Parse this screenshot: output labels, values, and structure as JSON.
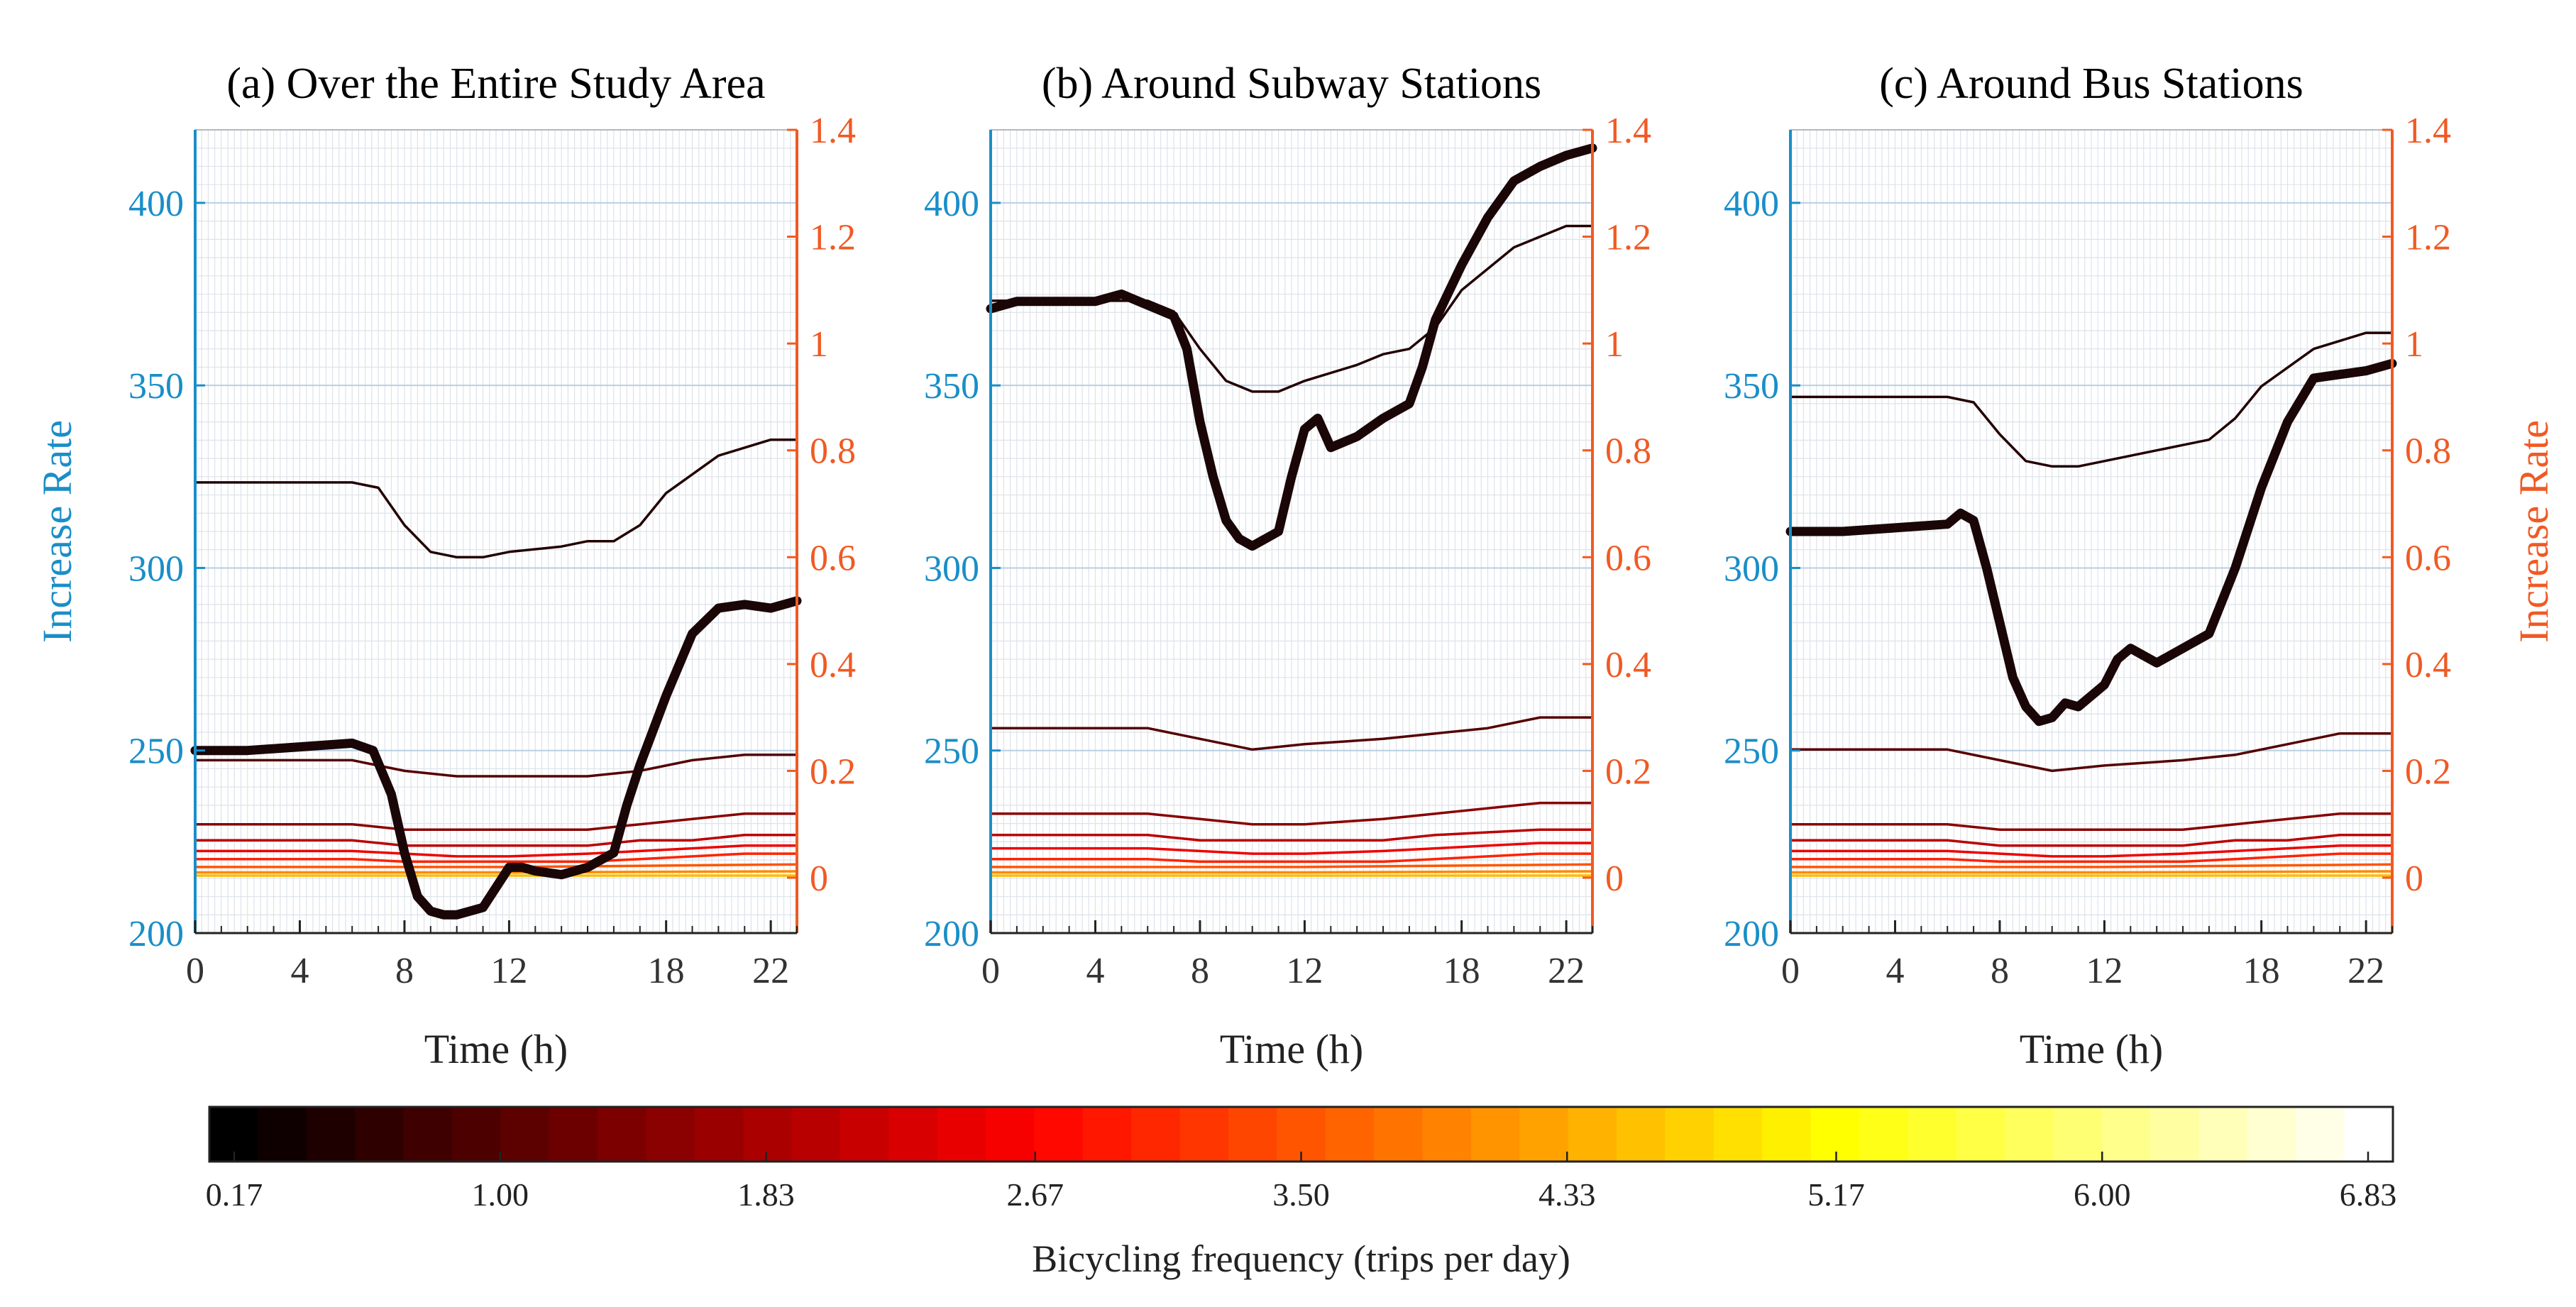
{
  "chart_data": [
    {
      "type": "line",
      "title": "(a) Over the Entire Study Area",
      "xlabel": "Time (h)",
      "ylabel_left": "Increase Rate",
      "ylabel_right": "",
      "xlim": [
        0,
        23
      ],
      "ylim_left": [
        200,
        420
      ],
      "ylim_right": [
        0,
        1.4
      ],
      "xticks": [
        "0",
        "4",
        "8",
        "12",
        "18",
        "22"
      ],
      "yticks_left": [
        "200",
        "250",
        "300",
        "350",
        "400"
      ],
      "yticks_right": [
        "0",
        "0.2",
        "0.4",
        "0.6",
        "0.8",
        "1",
        "1.2",
        "1.4"
      ],
      "grid": true,
      "series": [
        {
          "axis": "left",
          "role": "increase-rate",
          "freq": 0.17,
          "x": [
            0,
            2,
            4,
            6,
            6.8,
            7.5,
            8,
            8.5,
            9,
            9.5,
            10,
            11,
            12,
            12.5,
            13,
            14,
            15,
            16,
            16.5,
            17,
            18,
            19,
            20,
            21,
            22,
            23
          ],
          "y": [
            250,
            250,
            251,
            252,
            250,
            238,
            222,
            210,
            206,
            205,
            205,
            207,
            218,
            218,
            217,
            216,
            218,
            222,
            235,
            246,
            265,
            282,
            289,
            290,
            289,
            291
          ]
        },
        {
          "axis": "right",
          "freq": 0.5,
          "x": [
            0,
            2,
            4,
            6,
            7,
            8,
            9,
            10,
            11,
            12,
            14,
            15,
            16,
            17,
            18,
            20,
            22,
            23
          ],
          "y": [
            0.74,
            0.74,
            0.74,
            0.74,
            0.73,
            0.66,
            0.61,
            0.6,
            0.6,
            0.61,
            0.62,
            0.63,
            0.63,
            0.66,
            0.72,
            0.79,
            0.82,
            0.82
          ]
        },
        {
          "axis": "right",
          "freq": 1.0,
          "x": [
            0,
            6,
            8,
            10,
            12,
            15,
            17,
            19,
            21,
            23
          ],
          "y": [
            0.22,
            0.22,
            0.2,
            0.19,
            0.19,
            0.19,
            0.2,
            0.22,
            0.23,
            0.23
          ]
        },
        {
          "axis": "right",
          "freq": 1.5,
          "x": [
            0,
            6,
            8,
            10,
            12,
            15,
            17,
            19,
            21,
            23
          ],
          "y": [
            0.1,
            0.1,
            0.09,
            0.09,
            0.09,
            0.09,
            0.1,
            0.11,
            0.12,
            0.12
          ]
        },
        {
          "axis": "right",
          "freq": 2.0,
          "x": [
            0,
            6,
            8,
            10,
            12,
            15,
            17,
            19,
            21,
            23
          ],
          "y": [
            0.07,
            0.07,
            0.06,
            0.06,
            0.06,
            0.06,
            0.07,
            0.07,
            0.08,
            0.08
          ]
        },
        {
          "axis": "right",
          "freq": 2.5,
          "x": [
            0,
            6,
            8,
            10,
            12,
            15,
            17,
            19,
            21,
            23
          ],
          "y": [
            0.05,
            0.05,
            0.045,
            0.04,
            0.04,
            0.045,
            0.05,
            0.055,
            0.06,
            0.06
          ]
        },
        {
          "axis": "right",
          "freq": 3.0,
          "x": [
            0,
            6,
            8,
            10,
            12,
            15,
            17,
            19,
            21,
            23
          ],
          "y": [
            0.035,
            0.035,
            0.03,
            0.03,
            0.03,
            0.03,
            0.035,
            0.04,
            0.045,
            0.045
          ]
        },
        {
          "axis": "right",
          "freq": 3.5,
          "x": [
            0,
            12,
            23
          ],
          "y": [
            0.02,
            0.02,
            0.025
          ]
        },
        {
          "axis": "right",
          "freq": 4.0,
          "x": [
            0,
            12,
            23
          ],
          "y": [
            0.01,
            0.01,
            0.012
          ]
        },
        {
          "axis": "right",
          "freq": 4.5,
          "x": [
            0,
            23
          ],
          "y": [
            0.004,
            0.004
          ]
        }
      ]
    },
    {
      "type": "line",
      "title": "(b) Around Subway Stations",
      "xlabel": "Time (h)",
      "ylabel_left": "",
      "ylabel_right": "",
      "xlim": [
        0,
        23
      ],
      "ylim_left": [
        200,
        420
      ],
      "ylim_right": [
        0,
        1.4
      ],
      "xticks": [
        "0",
        "4",
        "8",
        "12",
        "18",
        "22"
      ],
      "yticks_left": [
        "200",
        "250",
        "300",
        "350",
        "400"
      ],
      "yticks_right": [
        "0",
        "0.2",
        "0.4",
        "0.6",
        "0.8",
        "1",
        "1.2",
        "1.4"
      ],
      "grid": true,
      "series": [
        {
          "axis": "left",
          "role": "increase-rate",
          "freq": 0.17,
          "x": [
            0,
            1,
            2,
            4,
            5,
            6,
            7,
            7.5,
            8,
            8.5,
            9,
            9.5,
            10,
            11,
            11.5,
            12,
            12.5,
            13,
            14,
            15,
            16,
            16.5,
            17,
            18,
            19,
            20,
            21,
            22,
            23
          ],
          "y": [
            371,
            373,
            373,
            373,
            375,
            372,
            369,
            360,
            340,
            325,
            313,
            308,
            306,
            310,
            325,
            338,
            341,
            333,
            336,
            341,
            345,
            355,
            368,
            383,
            396,
            406,
            410,
            413,
            415
          ]
        },
        {
          "axis": "right",
          "freq": 0.5,
          "x": [
            0,
            2,
            4,
            6,
            7,
            8,
            9,
            10,
            11,
            12,
            14,
            15,
            16,
            17,
            18,
            20,
            22,
            23
          ],
          "y": [
            1.08,
            1.08,
            1.08,
            1.08,
            1.06,
            0.99,
            0.93,
            0.91,
            0.91,
            0.93,
            0.96,
            0.98,
            0.99,
            1.03,
            1.1,
            1.18,
            1.22,
            1.22
          ]
        },
        {
          "axis": "right",
          "freq": 1.0,
          "x": [
            0,
            6,
            8,
            10,
            12,
            15,
            17,
            19,
            21,
            23
          ],
          "y": [
            0.28,
            0.28,
            0.26,
            0.24,
            0.25,
            0.26,
            0.27,
            0.28,
            0.3,
            0.3
          ]
        },
        {
          "axis": "right",
          "freq": 1.5,
          "x": [
            0,
            6,
            8,
            10,
            12,
            15,
            17,
            19,
            21,
            23
          ],
          "y": [
            0.12,
            0.12,
            0.11,
            0.1,
            0.1,
            0.11,
            0.12,
            0.13,
            0.14,
            0.14
          ]
        },
        {
          "axis": "right",
          "freq": 2.0,
          "x": [
            0,
            6,
            8,
            10,
            12,
            15,
            17,
            19,
            21,
            23
          ],
          "y": [
            0.08,
            0.08,
            0.07,
            0.07,
            0.07,
            0.07,
            0.08,
            0.085,
            0.09,
            0.09
          ]
        },
        {
          "axis": "right",
          "freq": 2.5,
          "x": [
            0,
            6,
            8,
            10,
            12,
            15,
            17,
            19,
            21,
            23
          ],
          "y": [
            0.055,
            0.055,
            0.05,
            0.045,
            0.045,
            0.05,
            0.055,
            0.06,
            0.065,
            0.065
          ]
        },
        {
          "axis": "right",
          "freq": 3.0,
          "x": [
            0,
            6,
            8,
            10,
            12,
            15,
            17,
            19,
            21,
            23
          ],
          "y": [
            0.035,
            0.035,
            0.03,
            0.03,
            0.03,
            0.03,
            0.035,
            0.04,
            0.045,
            0.045
          ]
        },
        {
          "axis": "right",
          "freq": 3.5,
          "x": [
            0,
            12,
            23
          ],
          "y": [
            0.02,
            0.02,
            0.025
          ]
        },
        {
          "axis": "right",
          "freq": 4.0,
          "x": [
            0,
            12,
            23
          ],
          "y": [
            0.01,
            0.01,
            0.012
          ]
        },
        {
          "axis": "right",
          "freq": 4.5,
          "x": [
            0,
            23
          ],
          "y": [
            0.004,
            0.004
          ]
        }
      ]
    },
    {
      "type": "line",
      "title": "(c) Around Bus Stations",
      "xlabel": "Time (h)",
      "ylabel_left": "",
      "ylabel_right": "Increase Rate",
      "xlim": [
        0,
        23
      ],
      "ylim_left": [
        200,
        420
      ],
      "ylim_right": [
        0,
        1.4
      ],
      "xticks": [
        "0",
        "4",
        "8",
        "12",
        "18",
        "22"
      ],
      "yticks_left": [
        "200",
        "250",
        "300",
        "350",
        "400"
      ],
      "yticks_right": [
        "0",
        "0.2",
        "0.4",
        "0.6",
        "0.8",
        "1",
        "1.2",
        "1.4"
      ],
      "grid": true,
      "series": [
        {
          "axis": "left",
          "role": "increase-rate",
          "freq": 0.17,
          "x": [
            0,
            2,
            4,
            6,
            6.5,
            7,
            7.5,
            8,
            8.5,
            9,
            9.5,
            10,
            10.5,
            11,
            12,
            12.5,
            13,
            14,
            15,
            16,
            17,
            18,
            19,
            20,
            21,
            22,
            23
          ],
          "y": [
            310,
            310,
            311,
            312,
            315,
            313,
            300,
            285,
            270,
            262,
            258,
            259,
            263,
            262,
            268,
            275,
            278,
            274,
            278,
            282,
            300,
            322,
            340,
            352,
            353,
            354,
            356
          ]
        },
        {
          "axis": "right",
          "freq": 0.5,
          "x": [
            0,
            2,
            4,
            6,
            7,
            8,
            9,
            10,
            11,
            12,
            14,
            15,
            16,
            17,
            18,
            20,
            22,
            23
          ],
          "y": [
            0.9,
            0.9,
            0.9,
            0.9,
            0.89,
            0.83,
            0.78,
            0.77,
            0.77,
            0.78,
            0.8,
            0.81,
            0.82,
            0.86,
            0.92,
            0.99,
            1.02,
            1.02
          ]
        },
        {
          "axis": "right",
          "freq": 1.0,
          "x": [
            0,
            6,
            8,
            10,
            12,
            15,
            17,
            19,
            21,
            23
          ],
          "y": [
            0.24,
            0.24,
            0.22,
            0.2,
            0.21,
            0.22,
            0.23,
            0.25,
            0.27,
            0.27
          ]
        },
        {
          "axis": "right",
          "freq": 1.5,
          "x": [
            0,
            6,
            8,
            10,
            12,
            15,
            17,
            19,
            21,
            23
          ],
          "y": [
            0.1,
            0.1,
            0.09,
            0.09,
            0.09,
            0.09,
            0.1,
            0.11,
            0.12,
            0.12
          ]
        },
        {
          "axis": "right",
          "freq": 2.0,
          "x": [
            0,
            6,
            8,
            10,
            12,
            15,
            17,
            19,
            21,
            23
          ],
          "y": [
            0.07,
            0.07,
            0.06,
            0.06,
            0.06,
            0.06,
            0.07,
            0.07,
            0.08,
            0.08
          ]
        },
        {
          "axis": "right",
          "freq": 2.5,
          "x": [
            0,
            6,
            8,
            10,
            12,
            15,
            17,
            19,
            21,
            23
          ],
          "y": [
            0.05,
            0.05,
            0.045,
            0.04,
            0.04,
            0.045,
            0.05,
            0.055,
            0.06,
            0.06
          ]
        },
        {
          "axis": "right",
          "freq": 3.0,
          "x": [
            0,
            6,
            8,
            10,
            12,
            15,
            17,
            19,
            21,
            23
          ],
          "y": [
            0.035,
            0.035,
            0.03,
            0.03,
            0.03,
            0.03,
            0.035,
            0.04,
            0.045,
            0.045
          ]
        },
        {
          "axis": "right",
          "freq": 3.5,
          "x": [
            0,
            12,
            23
          ],
          "y": [
            0.02,
            0.02,
            0.025
          ]
        },
        {
          "axis": "right",
          "freq": 4.0,
          "x": [
            0,
            12,
            23
          ],
          "y": [
            0.01,
            0.01,
            0.012
          ]
        },
        {
          "axis": "right",
          "freq": 4.5,
          "x": [
            0,
            23
          ],
          "y": [
            0.004,
            0.004
          ]
        }
      ]
    }
  ],
  "colorbar": {
    "label": "Bicycling frequency (trips per day)",
    "min": 0.17,
    "max": 6.83,
    "ticks": [
      "0.17",
      "1.00",
      "1.83",
      "2.67",
      "3.50",
      "4.33",
      "5.17",
      "6.00",
      "6.83"
    ],
    "tick_values": [
      0.17,
      1.0,
      1.83,
      2.67,
      3.5,
      4.33,
      5.17,
      6.0,
      6.83
    ],
    "bins": 45,
    "colormap": "hot"
  },
  "colors": {
    "left_axis": "#1a8ec8",
    "right_axis": "#f05a24",
    "grid": "#d6dde6"
  }
}
